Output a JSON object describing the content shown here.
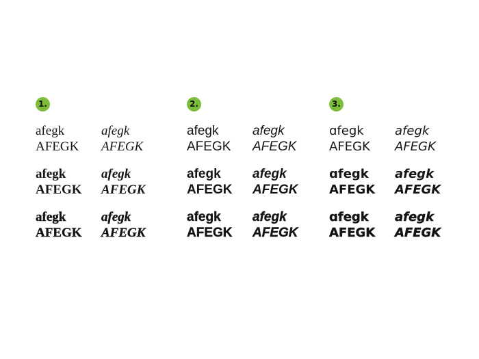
{
  "colors": {
    "accent": "#7cbd3b",
    "text": "#141414"
  },
  "groups": [
    {
      "number": "1.",
      "roman": [
        {
          "lower": "afegk",
          "upper": "AFEGK"
        },
        {
          "lower": "afegk",
          "upper": "AFEGK"
        },
        {
          "lower": "afegk",
          "upper": "AFEGK"
        }
      ],
      "italic": [
        {
          "lower": "afegk",
          "upper": "AFEGK"
        },
        {
          "lower": "afegk",
          "upper": "AFEGK"
        },
        {
          "lower": "afegk",
          "upper": "AFEGK"
        }
      ]
    },
    {
      "number": "2.",
      "roman": [
        {
          "lower": "afegk",
          "upper": "AFEGK"
        },
        {
          "lower": "afegk",
          "upper": "AFEGK"
        },
        {
          "lower": "afegk",
          "upper": "AFEGK"
        }
      ],
      "italic": [
        {
          "lower": "afegk",
          "upper": "AFEGK"
        },
        {
          "lower": "afegk",
          "upper": "AFEGK"
        },
        {
          "lower": "afegk",
          "upper": "AFEGK"
        }
      ]
    },
    {
      "number": "3.",
      "roman": [
        {
          "lower": "ɑfegk",
          "upper": "AFEGK"
        },
        {
          "lower": "ɑfegk",
          "upper": "AFEGK"
        },
        {
          "lower": "ɑfegk",
          "upper": "AFEGK"
        }
      ],
      "italic": [
        {
          "lower": "afegk",
          "upper": "AFEGK"
        },
        {
          "lower": "afegk",
          "upper": "AFEGK"
        },
        {
          "lower": "afegk",
          "upper": "AFEGK"
        }
      ]
    }
  ]
}
